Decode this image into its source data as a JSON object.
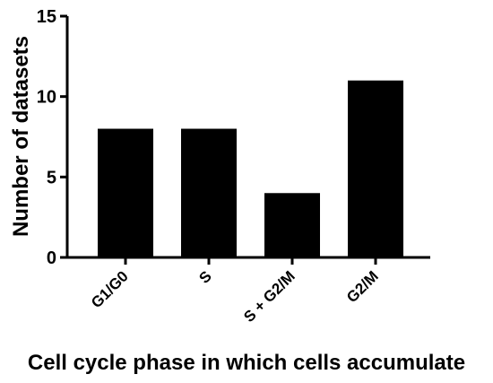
{
  "chart_data": {
    "type": "bar",
    "title": "",
    "xlabel": "Cell cycle phase in which cells accumulate",
    "ylabel": "Number of datasets",
    "categories": [
      "G1/G0",
      "S",
      "S + G2/M",
      "G2/M"
    ],
    "values": [
      8,
      8,
      4,
      11
    ],
    "ylim": [
      0,
      15
    ],
    "yticks": [
      0,
      5,
      10,
      15
    ],
    "grid": false,
    "bar_color": "#000000",
    "x_tick_label_rotation_deg": -45
  }
}
